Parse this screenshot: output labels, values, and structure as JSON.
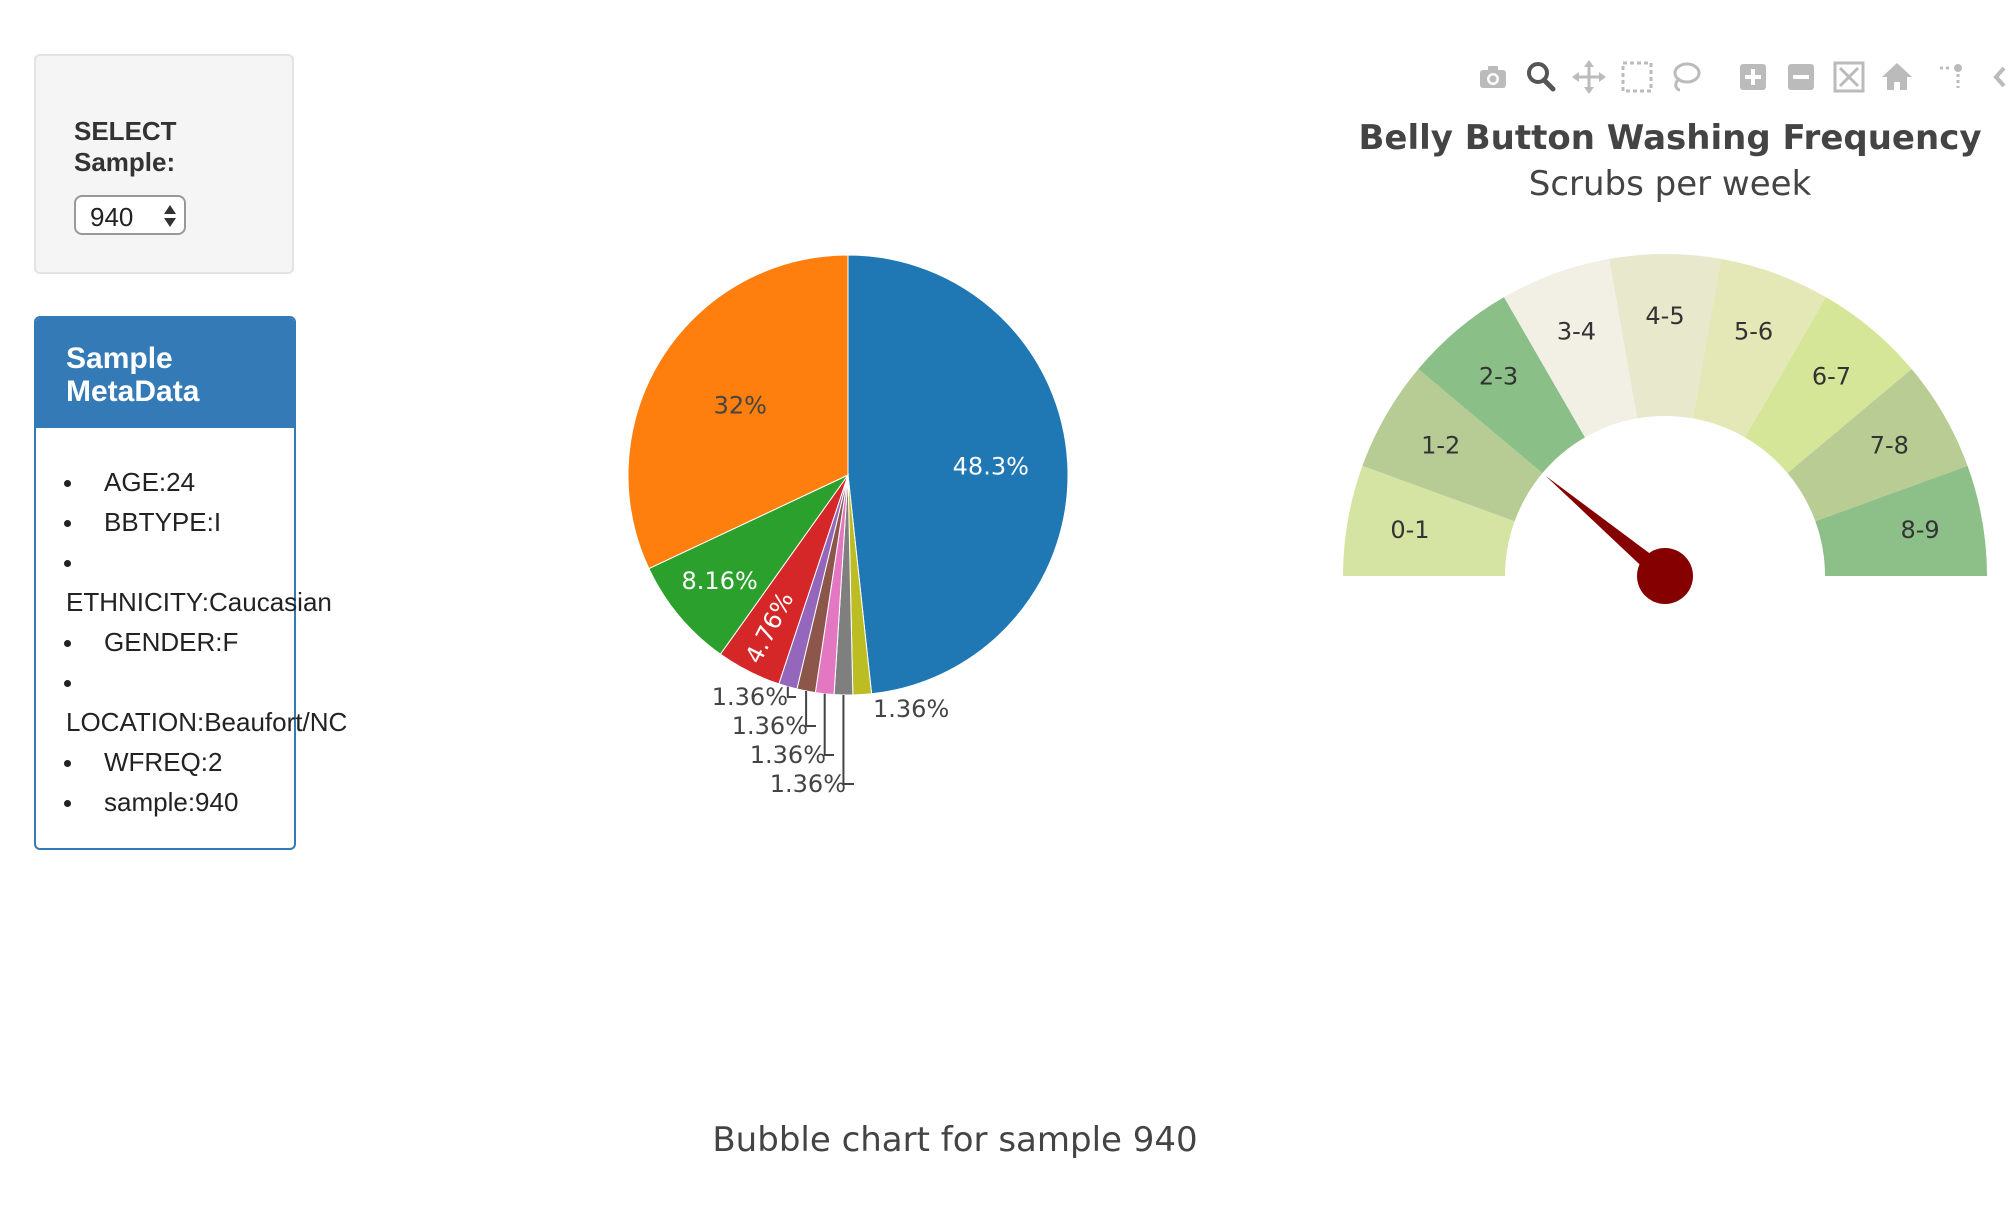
{
  "selector": {
    "label": "SELECT Sample:",
    "value": "940"
  },
  "metadata": {
    "title": "Sample MetaData",
    "items": [
      "AGE:24",
      "BBTYPE:I",
      "ETHNICITY:Caucasian",
      "GENDER:F",
      "LOCATION:Beaufort/NC",
      "WFREQ:2",
      "sample:940"
    ]
  },
  "modebar": {
    "icons": [
      "camera-icon",
      "zoom-icon",
      "pan-icon",
      "box-select-icon",
      "lasso-icon",
      "zoom-in-icon",
      "zoom-out-icon",
      "autoscale-icon",
      "home-icon",
      "spike-lines-icon"
    ]
  },
  "pie_chart": {
    "chart_data": {
      "type": "pie",
      "start_direction": "clockwise-from-top",
      "slices": [
        {
          "label": "48.3%",
          "value": 48.3,
          "color": "#1f77b4"
        },
        {
          "label": "1.36%",
          "value": 1.36,
          "color": "#bcbd22"
        },
        {
          "label": "1.36%",
          "value": 1.36,
          "color": "#7f7f7f"
        },
        {
          "label": "1.36%",
          "value": 1.36,
          "color": "#e377c2"
        },
        {
          "label": "1.36%",
          "value": 1.36,
          "color": "#8c564b"
        },
        {
          "label": "1.36%",
          "value": 1.36,
          "color": "#9467bd"
        },
        {
          "label": "4.76%",
          "value": 4.76,
          "color": "#d62728"
        },
        {
          "label": "8.16%",
          "value": 8.16,
          "color": "#2ca02c"
        },
        {
          "label": "32%",
          "value": 32.0,
          "color": "#ff7f0e"
        }
      ]
    }
  },
  "gauge": {
    "title": "Belly Button Washing Frequency",
    "subtitle": "Scrubs per week",
    "chart_data": {
      "type": "gauge",
      "value": 2,
      "range": [
        0,
        9
      ],
      "segments": [
        {
          "label": "0-1",
          "color": "#d5e4a3"
        },
        {
          "label": "1-2",
          "color": "#b7cc94"
        },
        {
          "label": "2-3",
          "color": "#8bbf88"
        },
        {
          "label": "3-4",
          "color": "#f2f0e5"
        },
        {
          "label": "4-5",
          "color": "#e7e8cc"
        },
        {
          "label": "5-6",
          "color": "#e3e8b6"
        },
        {
          "label": "6-7",
          "color": "#d5e699"
        },
        {
          "label": "7-8",
          "color": "#b8cc94"
        },
        {
          "label": "8-9",
          "color": "#8dbf88"
        }
      ],
      "needle_color": "#850000"
    }
  },
  "bubble_chart": {
    "title": "Bubble chart for sample 940"
  }
}
